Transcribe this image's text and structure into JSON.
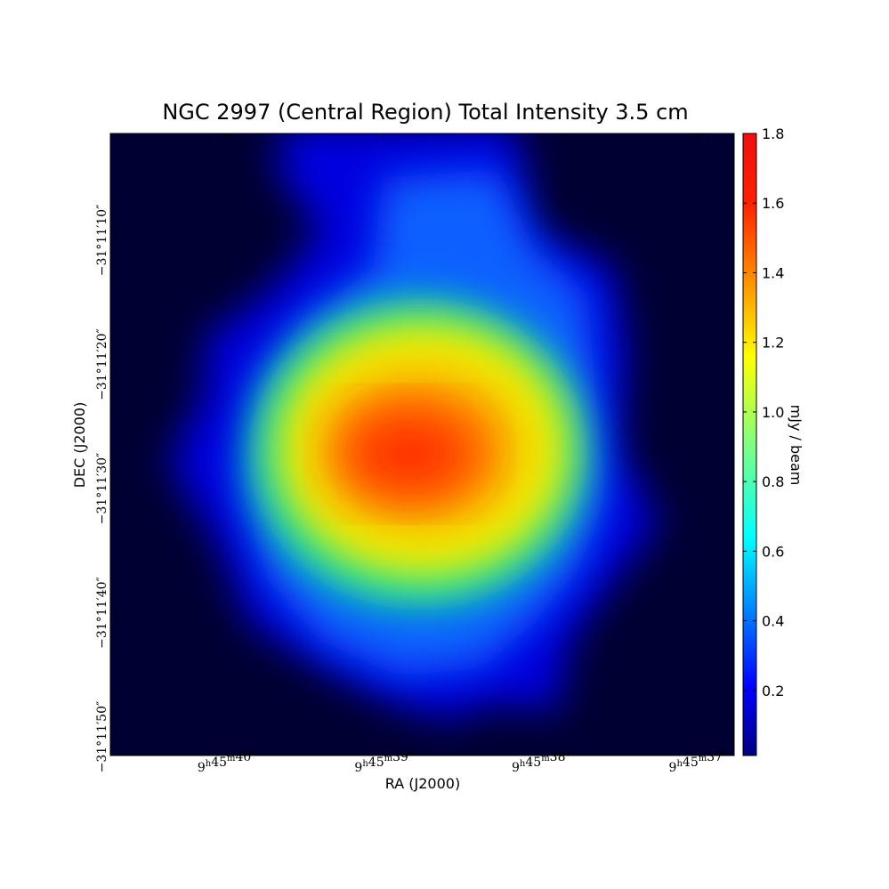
{
  "chart_data": {
    "type": "image",
    "title": "NGC 2997 (Central Region) Total Intensity 3.5 cm",
    "xlabel": "RA (J2000)",
    "ylabel": "DEC (J2000)",
    "colorbar_label": "mJy / beam",
    "colormap": "jet",
    "clim": [
      0.013,
      1.8
    ],
    "cticks": [
      0.2,
      0.4,
      0.6,
      0.8,
      {
        "value": 1,
        "label": "1.0"
      },
      1.2,
      1.4,
      1.6,
      1.8
    ],
    "xlim": [
      40.74,
      36.77
    ],
    "xticks": [
      {
        "value": 40,
        "label": "9h45m40s"
      },
      {
        "value": 39,
        "label": "9h45m39s"
      },
      {
        "value": 38,
        "label": "9h45m38s"
      },
      {
        "value": 37,
        "label": "9h45m37s"
      }
    ],
    "ylim": [
      51.5,
      1.4
    ],
    "yticks": [
      {
        "value": 10,
        "label": "−31°11′10″"
      },
      {
        "value": 20,
        "label": "−31°11′20″"
      },
      {
        "value": 30,
        "label": "−31°11′30″"
      },
      {
        "value": 40,
        "label": "−31°11′40″"
      },
      {
        "value": 50,
        "label": "−31°11′50″"
      }
    ]
  }
}
